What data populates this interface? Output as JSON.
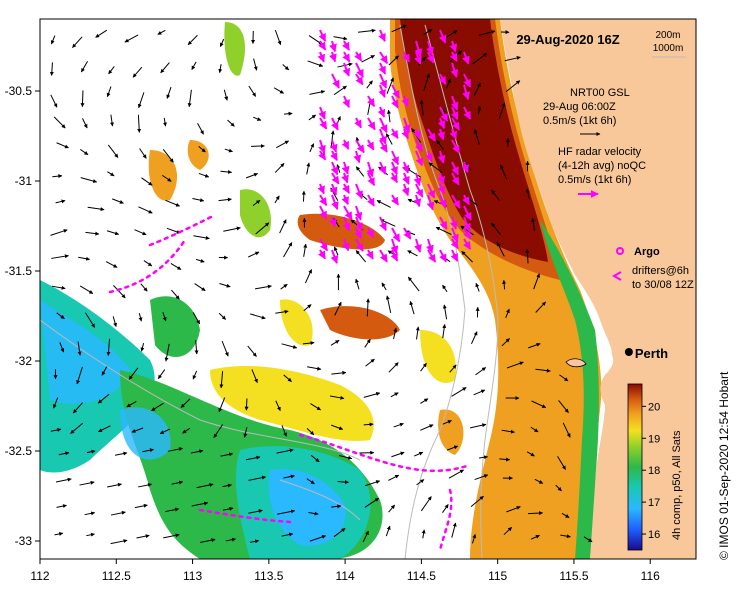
{
  "map": {
    "title": "29-Aug-2020 16Z",
    "isobath_labels": [
      "200m",
      "1000m"
    ],
    "lon_ticks": [
      112,
      112.5,
      113,
      113.5,
      114,
      114.5,
      115,
      115.5,
      116
    ],
    "lat_ticks": [
      -30.5,
      -31,
      -31.5,
      -32,
      -32.5,
      -33
    ],
    "lon_range": [
      112,
      116.3
    ],
    "lat_range": [
      -33.1,
      -30.1
    ],
    "city": {
      "name": "Perth",
      "lon": 115.86,
      "lat": -31.95
    },
    "legend": {
      "gsl_line1": "NRT00 GSL",
      "gsl_line2": "29-Aug 06:00Z",
      "gsl_line3": "0.5m/s (1kt 6h)",
      "hf_line1": "HF radar velocity",
      "hf_line2": "(4-12h avg) noQC",
      "hf_line3": "0.5m/s (1kt 6h)",
      "argo_label": "Argo",
      "drifters_line1": "drifters@6h",
      "drifters_line2": "to 30/08 12Z"
    },
    "colorbar": {
      "ticks": [
        16,
        17,
        18,
        19,
        20
      ],
      "range": [
        15.5,
        20.7
      ],
      "caption": "4h comp, p50, All Sats"
    },
    "credit": "© IMOS 01-Sep-2020 12:54 Hobart",
    "colors": {
      "land": "#f8c79a",
      "ocean": "#ffffff",
      "gsl_arrow": "#000000",
      "hf_arrow": "#ff00ff",
      "isobath": "#bbbbbb"
    }
  }
}
